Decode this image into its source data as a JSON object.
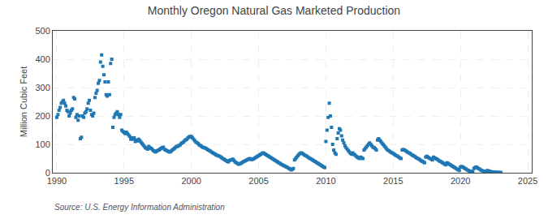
{
  "chart_data": {
    "type": "scatter",
    "title": "Monthly Oregon Natural Gas Marketed Production",
    "ylabel": "Million Cubic Feet",
    "annotations": [
      "Source: U.S. Energy Information Administration"
    ],
    "marker": "square",
    "grid": true,
    "xlim": [
      1989.7,
      2025.3
    ],
    "xticks": [
      1990,
      1995,
      2000,
      2005,
      2010,
      2015,
      2020,
      2025
    ],
    "ylim": [
      0,
      500
    ],
    "yticks": [
      0,
      100,
      200,
      300,
      400,
      500
    ],
    "x": [
      1990.0,
      1990.083,
      1990.167,
      1990.25,
      1990.333,
      1990.417,
      1990.5,
      1990.583,
      1990.667,
      1990.75,
      1990.833,
      1990.917,
      1991.0,
      1991.083,
      1991.167,
      1991.25,
      1991.333,
      1991.417,
      1991.5,
      1991.583,
      1991.667,
      1991.75,
      1991.833,
      1991.917,
      1992.0,
      1992.083,
      1992.167,
      1992.25,
      1992.333,
      1992.417,
      1992.5,
      1992.583,
      1992.667,
      1992.75,
      1992.833,
      1992.917,
      1993.0,
      1993.083,
      1993.167,
      1993.25,
      1993.333,
      1993.417,
      1993.5,
      1993.583,
      1993.667,
      1993.75,
      1993.833,
      1993.917,
      1994.0,
      1994.083,
      1994.167,
      1994.25,
      1994.333,
      1994.417,
      1994.5,
      1994.583,
      1994.667,
      1994.75,
      1994.833,
      1994.917,
      1995.0,
      1995.083,
      1995.167,
      1995.25,
      1995.333,
      1995.417,
      1995.5,
      1995.583,
      1995.667,
      1995.75,
      1995.833,
      1995.917,
      1996.0,
      1996.083,
      1996.167,
      1996.25,
      1996.333,
      1996.417,
      1996.5,
      1996.583,
      1996.667,
      1996.75,
      1996.833,
      1996.917,
      1997.0,
      1997.083,
      1997.167,
      1997.25,
      1997.333,
      1997.417,
      1997.5,
      1997.583,
      1997.667,
      1997.75,
      1997.833,
      1997.917,
      1998.0,
      1998.083,
      1998.167,
      1998.25,
      1998.333,
      1998.417,
      1998.5,
      1998.583,
      1998.667,
      1998.75,
      1998.833,
      1998.917,
      1999.0,
      1999.083,
      1999.167,
      1999.25,
      1999.333,
      1999.417,
      1999.5,
      1999.583,
      1999.667,
      1999.75,
      1999.833,
      1999.917,
      2000.0,
      2000.083,
      2000.167,
      2000.25,
      2000.333,
      2000.417,
      2000.5,
      2000.583,
      2000.667,
      2000.75,
      2000.833,
      2000.917,
      2001.0,
      2001.083,
      2001.167,
      2001.25,
      2001.333,
      2001.417,
      2001.5,
      2001.583,
      2001.667,
      2001.75,
      2001.833,
      2001.917,
      2002.0,
      2002.083,
      2002.167,
      2002.25,
      2002.333,
      2002.417,
      2002.5,
      2002.583,
      2002.667,
      2002.75,
      2002.833,
      2002.917,
      2003.0,
      2003.083,
      2003.167,
      2003.25,
      2003.333,
      2003.417,
      2003.5,
      2003.583,
      2003.667,
      2003.75,
      2003.833,
      2003.917,
      2004.0,
      2004.083,
      2004.167,
      2004.25,
      2004.333,
      2004.417,
      2004.5,
      2004.583,
      2004.667,
      2004.75,
      2004.833,
      2004.917,
      2005.0,
      2005.083,
      2005.167,
      2005.25,
      2005.333,
      2005.417,
      2005.5,
      2005.583,
      2005.667,
      2005.75,
      2005.833,
      2005.917,
      2006.0,
      2006.083,
      2006.167,
      2006.25,
      2006.333,
      2006.417,
      2006.5,
      2006.583,
      2006.667,
      2006.75,
      2006.833,
      2006.917,
      2007.0,
      2007.083,
      2007.167,
      2007.25,
      2007.333,
      2007.417,
      2007.5,
      2007.583,
      2007.667,
      2007.75,
      2007.833,
      2007.917,
      2008.0,
      2008.083,
      2008.167,
      2008.25,
      2008.333,
      2008.417,
      2008.5,
      2008.583,
      2008.667,
      2008.75,
      2008.833,
      2008.917,
      2009.0,
      2009.083,
      2009.167,
      2009.25,
      2009.333,
      2009.417,
      2009.5,
      2009.583,
      2009.667,
      2009.75,
      2009.833,
      2009.917,
      2010.0,
      2010.083,
      2010.167,
      2010.25,
      2010.333,
      2010.417,
      2010.5,
      2010.583,
      2010.667,
      2010.75,
      2010.833,
      2010.917,
      2011.0,
      2011.083,
      2011.167,
      2011.25,
      2011.333,
      2011.417,
      2011.5,
      2011.583,
      2011.667,
      2011.75,
      2011.833,
      2011.917,
      2012.0,
      2012.083,
      2012.167,
      2012.25,
      2012.333,
      2012.417,
      2012.5,
      2012.583,
      2012.667,
      2012.75,
      2012.833,
      2012.917,
      2013.0,
      2013.083,
      2013.167,
      2013.25,
      2013.333,
      2013.417,
      2013.5,
      2013.583,
      2013.667,
      2013.75,
      2013.833,
      2013.917,
      2014.0,
      2014.083,
      2014.167,
      2014.25,
      2014.333,
      2014.417,
      2014.5,
      2014.583,
      2014.667,
      2014.75,
      2014.833,
      2014.917,
      2015.0,
      2015.083,
      2015.167,
      2015.25,
      2015.333,
      2015.417,
      2015.5,
      2015.583,
      2015.667,
      2015.75,
      2015.833,
      2015.917,
      2016.0,
      2016.083,
      2016.167,
      2016.25,
      2016.333,
      2016.417,
      2016.5,
      2016.583,
      2016.667,
      2016.75,
      2016.833,
      2016.917,
      2017.0,
      2017.083,
      2017.167,
      2017.25,
      2017.333,
      2017.417,
      2017.5,
      2017.583,
      2017.667,
      2017.75,
      2017.833,
      2017.917,
      2018.0,
      2018.083,
      2018.167,
      2018.25,
      2018.333,
      2018.417,
      2018.5,
      2018.583,
      2018.667,
      2018.75,
      2018.833,
      2018.917,
      2019.0,
      2019.083,
      2019.167,
      2019.25,
      2019.333,
      2019.417,
      2019.5,
      2019.583,
      2019.667,
      2019.75,
      2019.833,
      2019.917,
      2020.0,
      2020.083,
      2020.167,
      2020.25,
      2020.333,
      2020.417,
      2020.5,
      2020.583,
      2020.667,
      2020.75,
      2020.833,
      2020.917,
      2021.0,
      2021.083,
      2021.167,
      2021.25,
      2021.333,
      2021.417,
      2021.5,
      2021.583,
      2021.667,
      2021.75,
      2021.833,
      2021.917,
      2022.0,
      2022.083,
      2022.167,
      2022.25,
      2022.333,
      2022.417,
      2022.5,
      2022.583,
      2022.667,
      2022.75,
      2022.833,
      2022.917,
      2023.0
    ],
    "values": [
      195,
      205,
      220,
      230,
      245,
      250,
      255,
      245,
      235,
      220,
      215,
      200,
      210,
      220,
      225,
      265,
      260,
      195,
      205,
      185,
      200,
      120,
      125,
      200,
      195,
      210,
      215,
      225,
      245,
      255,
      220,
      205,
      200,
      210,
      265,
      280,
      290,
      315,
      325,
      390,
      415,
      375,
      345,
      320,
      275,
      270,
      320,
      275,
      385,
      400,
      160,
      195,
      205,
      210,
      215,
      205,
      195,
      205,
      150,
      145,
      142,
      138,
      143,
      138,
      133,
      128,
      118,
      123,
      118,
      123,
      110,
      115,
      112,
      118,
      113,
      108,
      103,
      98,
      93,
      88,
      86,
      83,
      93,
      88,
      86,
      83,
      78,
      76,
      73,
      76,
      78,
      80,
      83,
      86,
      88,
      90,
      83,
      80,
      78,
      76,
      74,
      73,
      76,
      80,
      83,
      86,
      90,
      93,
      93,
      96,
      98,
      103,
      106,
      108,
      113,
      116,
      118,
      123,
      126,
      128,
      128,
      123,
      118,
      113,
      108,
      106,
      103,
      98,
      96,
      93,
      90,
      88,
      88,
      86,
      83,
      80,
      78,
      76,
      73,
      70,
      68,
      66,
      63,
      61,
      60,
      58,
      56,
      53,
      50,
      48,
      45,
      43,
      40,
      38,
      43,
      45,
      46,
      48,
      43,
      38,
      35,
      33,
      30,
      31,
      33,
      35,
      38,
      40,
      42,
      44,
      46,
      48,
      50,
      48,
      46,
      48,
      50,
      53,
      55,
      58,
      60,
      63,
      65,
      68,
      70,
      68,
      65,
      63,
      60,
      58,
      55,
      53,
      50,
      48,
      45,
      43,
      40,
      38,
      35,
      33,
      30,
      28,
      26,
      24,
      22,
      20,
      18,
      15,
      13,
      10,
      12,
      15,
      45,
      50,
      55,
      60,
      65,
      68,
      70,
      68,
      65,
      62,
      60,
      58,
      55,
      52,
      50,
      48,
      45,
      43,
      40,
      38,
      35,
      33,
      30,
      28,
      25,
      23,
      20,
      18,
      110,
      150,
      195,
      245,
      200,
      160,
      100,
      80,
      70,
      65,
      120,
      140,
      155,
      150,
      130,
      115,
      105,
      95,
      88,
      83,
      78,
      73,
      68,
      65,
      70,
      65,
      62,
      58,
      55,
      52,
      50,
      55,
      52,
      50,
      80,
      85,
      90,
      95,
      100,
      105,
      100,
      95,
      90,
      88,
      85,
      80,
      115,
      120,
      115,
      110,
      105,
      100,
      95,
      90,
      85,
      80,
      78,
      75,
      72,
      70,
      68,
      65,
      62,
      60,
      58,
      55,
      52,
      50,
      80,
      82,
      80,
      78,
      75,
      72,
      70,
      68,
      65,
      62,
      60,
      58,
      55,
      52,
      50,
      48,
      45,
      42,
      40,
      38,
      35,
      55,
      58,
      55,
      52,
      50,
      48,
      45,
      55,
      52,
      50,
      48,
      45,
      42,
      40,
      38,
      35,
      33,
      30,
      28,
      35,
      33,
      30,
      28,
      25,
      23,
      20,
      18,
      15,
      13,
      10,
      8,
      20,
      22,
      20,
      18,
      15,
      13,
      10,
      8,
      6,
      5,
      4,
      3,
      15,
      18,
      20,
      18,
      15,
      13,
      10,
      8,
      6,
      5,
      4,
      3,
      8,
      6,
      5,
      4,
      3,
      2,
      2,
      2,
      1,
      1,
      1,
      1,
      1
    ]
  }
}
